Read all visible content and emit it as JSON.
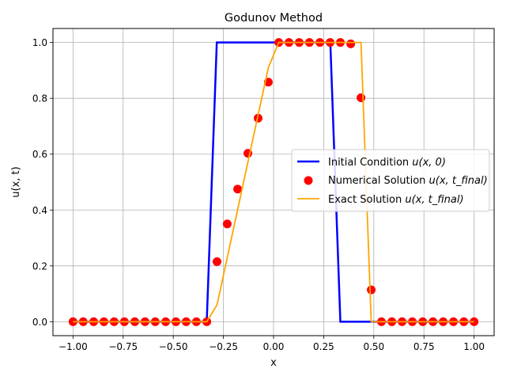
{
  "chart_data": {
    "type": "line",
    "title": "Godunov Method",
    "xlabel": "x",
    "ylabel": "u(x, t)",
    "xlim": [
      -1.1,
      1.1
    ],
    "ylim": [
      -0.05,
      1.05
    ],
    "grid": true,
    "x_ticks": [
      -1.0,
      -0.75,
      -0.5,
      -0.25,
      0.0,
      0.25,
      0.5,
      0.75,
      1.0
    ],
    "x_tick_labels": [
      "−1.00",
      "−0.75",
      "−0.50",
      "−0.25",
      "0.00",
      "0.25",
      "0.50",
      "0.75",
      "1.00"
    ],
    "y_ticks": [
      0.0,
      0.2,
      0.4,
      0.6,
      0.8,
      1.0
    ],
    "y_tick_labels": [
      "0.0",
      "0.2",
      "0.4",
      "0.6",
      "0.8",
      "1.0"
    ],
    "legend_position": "center-right",
    "series": [
      {
        "name": "Initial Condition",
        "legend_math": "u(x, 0)",
        "kind": "line",
        "color": "#0000ff",
        "x": [
          -1.0,
          -0.333,
          -0.283,
          0.283,
          0.333,
          1.0
        ],
        "y": [
          0.0,
          0.0,
          1.0,
          1.0,
          0.0,
          0.0
        ]
      },
      {
        "name": "Numerical Solution",
        "legend_math": "u(x, t_final)",
        "kind": "scatter",
        "color": "#ff0000",
        "x": [
          -1.0,
          -0.949,
          -0.897,
          -0.846,
          -0.795,
          -0.744,
          -0.692,
          -0.641,
          -0.59,
          -0.538,
          -0.487,
          -0.436,
          -0.385,
          -0.333,
          -0.282,
          -0.231,
          -0.179,
          -0.128,
          -0.077,
          -0.026,
          0.026,
          0.077,
          0.128,
          0.179,
          0.231,
          0.282,
          0.333,
          0.385,
          0.436,
          0.487,
          0.538,
          0.59,
          0.641,
          0.692,
          0.744,
          0.795,
          0.846,
          0.897,
          0.949,
          1.0
        ],
        "y": [
          0,
          0,
          0,
          0,
          0,
          0,
          0,
          0,
          0,
          0,
          0,
          0,
          0,
          0,
          0.215,
          0.35,
          0.475,
          0.603,
          0.729,
          0.858,
          1.0,
          1.0,
          1.0,
          1.0,
          1.0,
          1.0,
          1.0,
          0.995,
          0.802,
          0.114,
          0,
          0,
          0,
          0,
          0,
          0,
          0,
          0,
          0,
          0
        ]
      },
      {
        "name": "Exact Solution",
        "legend_math": "u(x, t_final)",
        "kind": "line",
        "color": "#ffa500",
        "x": [
          -1.0,
          -0.333,
          -0.282,
          -0.026,
          0.026,
          0.436,
          0.487,
          1.0
        ],
        "y": [
          0.0,
          0.0,
          0.06,
          0.91,
          1.0,
          1.0,
          0.0,
          0.0
        ]
      }
    ]
  }
}
